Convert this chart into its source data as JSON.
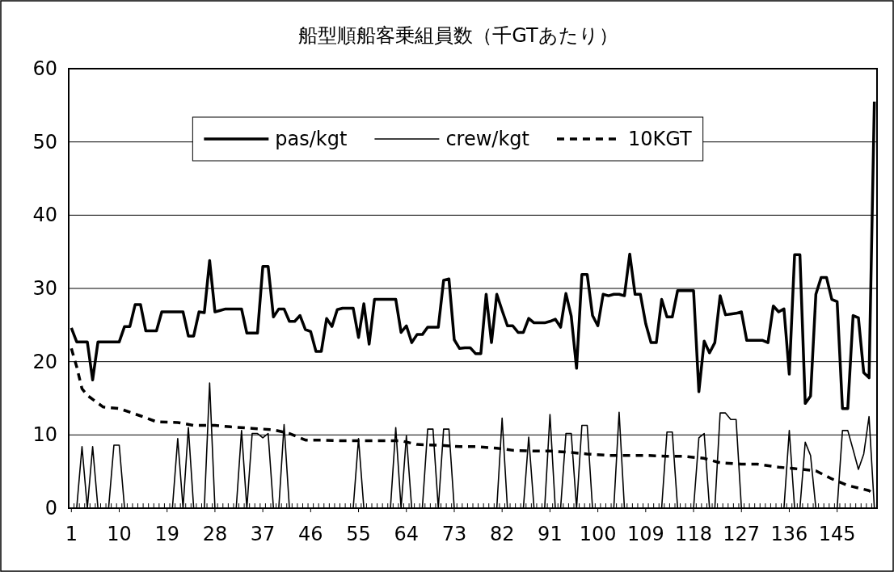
{
  "chart_data": {
    "type": "line",
    "title": "船型順船客乗組員数（千GTあたり）",
    "x": [
      1,
      2,
      3,
      4,
      5,
      6,
      7,
      8,
      9,
      10,
      11,
      12,
      13,
      14,
      15,
      16,
      17,
      18,
      19,
      20,
      21,
      22,
      23,
      24,
      25,
      26,
      27,
      28,
      29,
      30,
      31,
      32,
      33,
      34,
      35,
      36,
      37,
      38,
      39,
      40,
      41,
      42,
      43,
      44,
      45,
      46,
      47,
      48,
      49,
      50,
      51,
      52,
      53,
      54,
      55,
      56,
      57,
      58,
      59,
      60,
      61,
      62,
      63,
      64,
      65,
      66,
      67,
      68,
      69,
      70,
      71,
      72,
      73,
      74,
      75,
      76,
      77,
      78,
      79,
      80,
      81,
      82,
      83,
      84,
      85,
      86,
      87,
      88,
      89,
      90,
      91,
      92,
      93,
      94,
      95,
      96,
      97,
      98,
      99,
      100,
      101,
      102,
      103,
      104,
      105,
      106,
      107,
      108,
      109,
      110,
      111,
      112,
      113,
      114,
      115,
      116,
      117,
      118,
      119,
      120,
      121,
      122,
      123,
      124,
      125,
      126,
      127,
      128,
      129,
      130,
      131,
      132,
      133,
      134,
      135,
      136,
      137,
      138,
      139,
      140,
      141,
      142,
      143,
      144,
      145,
      146,
      147,
      148,
      149,
      150,
      151,
      152
    ],
    "series": [
      {
        "name": "pas/kgt",
        "color": "#000000",
        "line_style": "solid",
        "values": [
          24.6,
          22.7,
          22.7,
          22.7,
          17.5,
          22.7,
          22.7,
          22.7,
          22.7,
          22.7,
          24.8,
          24.8,
          27.8,
          27.8,
          24.2,
          24.2,
          24.2,
          26.8,
          26.8,
          26.8,
          26.8,
          26.8,
          23.5,
          23.5,
          26.8,
          26.7,
          33.8,
          26.8,
          27.0,
          27.2,
          27.2,
          27.2,
          27.2,
          23.9,
          23.9,
          23.9,
          33.0,
          33.0,
          26.1,
          27.2,
          27.2,
          25.5,
          25.5,
          26.3,
          24.4,
          24.1,
          21.4,
          21.4,
          25.9,
          24.8,
          27.1,
          27.3,
          27.3,
          27.3,
          23.3,
          27.9,
          22.4,
          28.5,
          28.5,
          28.5,
          28.5,
          28.5,
          24.0,
          24.9,
          22.6,
          23.7,
          23.7,
          24.7,
          24.7,
          24.7,
          31.1,
          31.3,
          23.0,
          21.8,
          21.9,
          21.9,
          21.1,
          21.1,
          29.2,
          22.6,
          29.2,
          27.0,
          24.9,
          24.9,
          24.0,
          24.0,
          25.9,
          25.3,
          25.3,
          25.3,
          25.5,
          25.8,
          24.7,
          29.3,
          26.2,
          19.1,
          31.9,
          31.9,
          26.3,
          24.9,
          29.2,
          29.0,
          29.2,
          29.2,
          29.0,
          34.7,
          29.2,
          29.2,
          25.2,
          22.6,
          22.6,
          28.5,
          26.1,
          26.1,
          29.7,
          29.7,
          29.7,
          29.7,
          15.9,
          22.8,
          21.2,
          22.6,
          29.0,
          26.4,
          26.5,
          26.6,
          26.8,
          22.9,
          22.9,
          22.9,
          22.9,
          22.6,
          27.6,
          26.8,
          27.2,
          18.3,
          34.6,
          34.6,
          14.3,
          15.3,
          29.2,
          31.5,
          31.5,
          28.5,
          28.2,
          13.6,
          13.6,
          26.3,
          26.0,
          18.5,
          17.8,
          55.5
        ]
      },
      {
        "name": "crew/kgt",
        "color": "#000000",
        "line_style": "solid",
        "values": [
          0,
          0,
          8.4,
          0,
          8.4,
          0,
          0,
          0,
          8.6,
          8.6,
          0,
          0,
          0,
          0,
          0,
          0,
          0,
          0,
          0,
          0,
          9.5,
          0,
          11.0,
          0,
          0,
          0,
          17.1,
          0,
          0,
          0,
          0,
          0,
          10.6,
          0,
          10.2,
          10.2,
          9.6,
          10.2,
          0,
          0,
          11.4,
          0,
          0,
          0,
          0,
          0,
          0,
          0,
          0,
          0,
          0,
          0,
          0,
          0,
          9.5,
          0,
          0,
          0,
          0,
          0,
          0,
          11.0,
          0,
          9.9,
          0,
          0,
          0,
          10.8,
          10.8,
          0,
          10.8,
          10.8,
          0,
          0,
          0,
          0,
          0,
          0,
          0,
          0,
          0,
          12.3,
          0,
          0,
          0,
          0,
          9.7,
          0,
          0,
          0,
          12.8,
          0,
          0,
          10.2,
          10.2,
          0,
          11.3,
          11.3,
          0,
          0,
          0,
          0,
          0,
          13.1,
          0,
          0,
          0,
          0,
          0,
          0,
          0,
          0,
          10.4,
          10.4,
          0,
          0,
          0,
          0,
          9.6,
          10.2,
          0,
          0,
          13.0,
          13.0,
          12.1,
          12.1,
          0,
          0,
          0,
          0,
          0,
          0,
          0,
          0,
          0,
          10.6,
          0,
          0,
          9.0,
          7.2,
          0,
          0,
          0,
          0,
          0,
          10.6,
          10.6,
          8.0,
          5.3,
          7.4,
          12.5,
          0
        ]
      },
      {
        "name": "10KGT",
        "color": "#000000",
        "line_style": "dashed",
        "x": [
          1,
          2,
          3,
          4,
          7,
          10,
          14,
          17,
          21,
          24,
          28,
          31,
          35,
          39,
          42,
          45,
          48,
          52,
          56,
          59,
          63,
          66,
          70,
          74,
          77,
          81,
          84,
          88,
          91,
          95,
          98,
          102,
          106,
          109,
          113,
          116,
          120,
          123,
          127,
          130,
          134,
          137,
          141,
          144,
          147,
          151,
          152
        ],
        "values": [
          21.8,
          19.3,
          16.3,
          15.4,
          13.8,
          13.6,
          12.6,
          11.8,
          11.7,
          11.3,
          11.3,
          11.1,
          10.9,
          10.7,
          10.2,
          9.3,
          9.3,
          9.2,
          9.2,
          9.2,
          9.2,
          8.7,
          8.6,
          8.4,
          8.4,
          8.2,
          7.9,
          7.8,
          7.8,
          7.6,
          7.4,
          7.2,
          7.2,
          7.2,
          7.1,
          7.1,
          6.8,
          6.2,
          6.0,
          6.0,
          5.6,
          5.4,
          5.1,
          4.0,
          3.1,
          2.4,
          1.8
        ]
      }
    ],
    "xlim": [
      0.5,
      152.5
    ],
    "xticks": [
      1,
      10,
      19,
      28,
      37,
      46,
      55,
      64,
      73,
      82,
      91,
      100,
      109,
      118,
      127,
      136,
      145
    ],
    "ylim": [
      0,
      60
    ],
    "yticks": [
      0,
      10,
      20,
      30,
      40,
      50,
      60
    ],
    "grid": "y",
    "legend": "top"
  }
}
